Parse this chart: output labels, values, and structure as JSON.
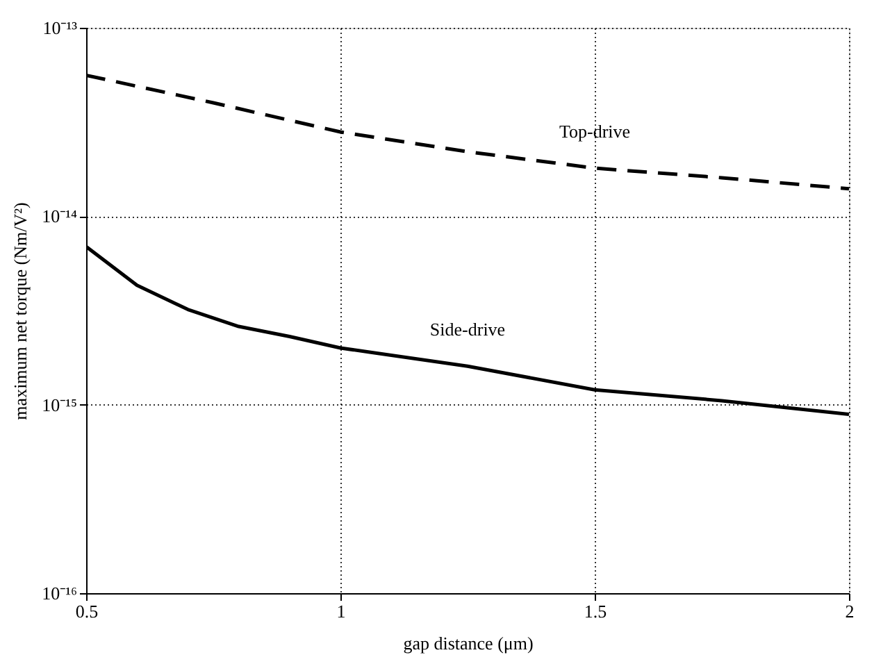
{
  "chart_data": {
    "type": "line",
    "xlabel": "gap distance (μm)",
    "ylabel": "maximum net torque (Nm/V²)",
    "xlim": [
      0.5,
      2
    ],
    "xticks": [
      0.5,
      1,
      1.5,
      2
    ],
    "ylim": [
      1e-16,
      1e-13
    ],
    "yticks": [
      {
        "value": 1e-16,
        "label": "10⁻¹⁶"
      },
      {
        "value": 1e-15,
        "label": "10⁻¹⁵"
      },
      {
        "value": 1e-14,
        "label": "10⁻¹⁴"
      },
      {
        "value": 1e-13,
        "label": "10⁻¹³"
      }
    ],
    "log": "y",
    "grid": true,
    "legend": false,
    "marker": "none",
    "series": [
      {
        "name": "Top-drive",
        "color": "#000000",
        "line_style": "dashed",
        "x": [
          0.5,
          0.75,
          1,
          1.25,
          1.5,
          1.75,
          2
        ],
        "values": [
          5.6e-14,
          4e-14,
          2.8e-14,
          2.2e-14,
          1.8e-14,
          1.6e-14,
          1.4e-14
        ]
      },
      {
        "name": "Side-drive",
        "color": "#000000",
        "line_style": "solid",
        "x": [
          0.5,
          0.6,
          0.7,
          0.8,
          0.9,
          1,
          1.25,
          1.5,
          1.75,
          2
        ],
        "values": [
          6.9e-15,
          4.3e-15,
          3.2e-15,
          2.6e-15,
          2.3e-15,
          2e-15,
          1.6e-15,
          1.2e-15,
          1.05e-15,
          8.9e-16
        ]
      }
    ]
  }
}
